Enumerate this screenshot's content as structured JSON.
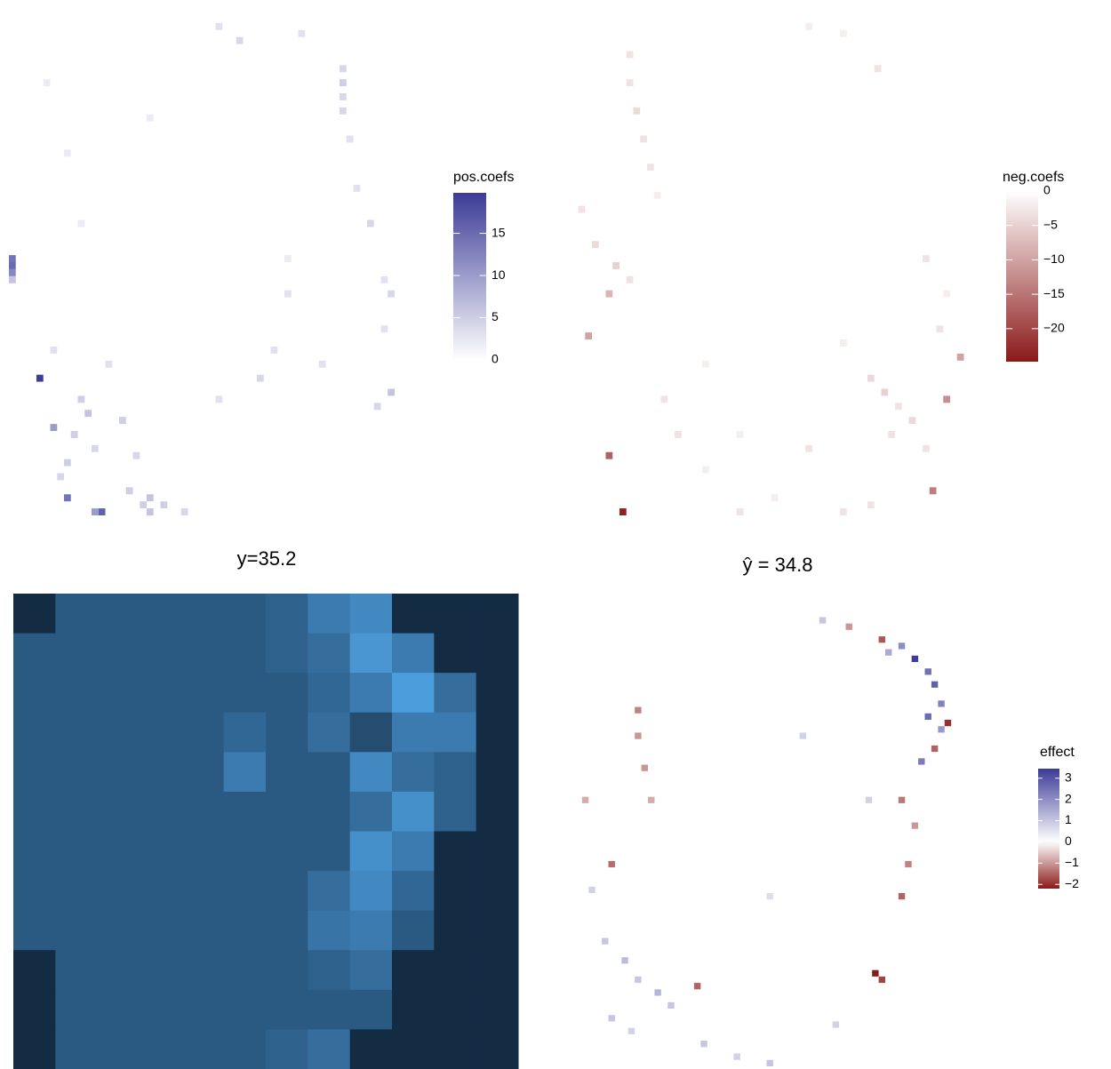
{
  "chart_data": [
    {
      "type": "heatmap",
      "legend_title": "pos.coefs",
      "high_color": "#3b3b98",
      "xlim": [
        0,
        60
      ],
      "ylim": [
        0,
        72
      ],
      "clim": [
        0,
        19.8
      ],
      "cticks": [
        0,
        5,
        10,
        15
      ],
      "x": [
        0,
        0,
        0,
        0,
        4,
        6,
        8,
        13,
        12,
        20,
        22,
        25,
        48,
        48,
        48,
        48,
        49,
        50,
        52,
        54,
        55,
        54,
        55,
        53,
        40,
        38,
        36,
        10,
        11,
        9,
        12,
        16,
        18,
        8,
        7,
        17,
        20,
        30,
        33,
        42,
        5,
        8,
        10,
        20,
        30,
        45,
        40,
        14,
        6,
        19
      ],
      "y": [
        35,
        36,
        37,
        38,
        52,
        59,
        69,
        71,
        71,
        71,
        70,
        71,
        8,
        10,
        12,
        14,
        18,
        25,
        30,
        38,
        40,
        45,
        54,
        56,
        40,
        48,
        52,
        55,
        57,
        60,
        62,
        58,
        63,
        64,
        66,
        68,
        69,
        2,
        4,
        3,
        10,
        20,
        30,
        15,
        55,
        50,
        35,
        50,
        48,
        70
      ],
      "values": [
        14,
        15,
        12,
        6,
        19.5,
        10,
        14,
        16,
        10,
        6,
        5,
        4,
        4,
        5,
        4,
        4,
        3,
        3,
        4,
        3,
        4,
        3,
        6,
        4,
        3,
        3,
        4,
        5,
        6,
        5,
        4,
        5,
        4,
        5,
        4,
        5,
        6,
        3,
        4,
        3,
        2,
        2,
        2,
        2,
        3,
        3,
        2,
        3,
        3,
        5
      ]
    },
    {
      "type": "heatmap",
      "legend_title": "neg.coefs",
      "low_color": "#8b1a1a",
      "xlim": [
        0,
        60
      ],
      "ylim": [
        0,
        72
      ],
      "clim": [
        -24.8,
        0
      ],
      "cticks": [
        0,
        {
          "value": -5,
          "label": "−5"
        },
        {
          "value": -10,
          "label": "−10"
        },
        {
          "value": -15,
          "label": "−15"
        },
        {
          "value": -20,
          "label": "−20"
        }
      ],
      "x": [
        8,
        6,
        53,
        55,
        57,
        3,
        6,
        9,
        9,
        10,
        11,
        12,
        13,
        4,
        2,
        7,
        9,
        14,
        16,
        20,
        44,
        46,
        48,
        47,
        50,
        52,
        44,
        40,
        30,
        25,
        54,
        55,
        52,
        45,
        40,
        35,
        25,
        35,
        40,
        20
      ],
      "y": [
        71,
        63,
        68,
        55,
        49,
        46,
        40,
        6,
        10,
        14,
        18,
        22,
        26,
        33,
        28,
        36,
        38,
        55,
        60,
        65,
        52,
        54,
        56,
        60,
        58,
        62,
        70,
        71,
        69,
        71,
        45,
        40,
        35,
        8,
        3,
        2,
        60,
        62,
        47,
        50
      ],
      "values": [
        -24,
        -17,
        -14,
        -12,
        -10,
        -10,
        -8,
        -3,
        -3,
        -4,
        -3,
        -3,
        -2,
        -4,
        -3,
        -5,
        -3,
        -3,
        -3,
        -2,
        -4,
        -5,
        -3,
        -3,
        -4,
        -3,
        -3,
        -3,
        -2,
        -3,
        -3,
        -2,
        -3,
        -3,
        -2,
        -2,
        -2,
        -3,
        -2,
        -2
      ]
    },
    {
      "type": "raster",
      "title": "y=35.2",
      "low_color": "#132b43",
      "high_color": "#56b1f7",
      "clim": [
        0,
        1
      ],
      "values": [
        [
          0,
          0.35,
          0.35,
          0.35,
          0.35,
          0.35,
          0.4,
          0.6,
          0.7,
          0,
          0,
          0
        ],
        [
          0.35,
          0.35,
          0.35,
          0.35,
          0.35,
          0.35,
          0.4,
          0.5,
          0.8,
          0.6,
          0,
          0
        ],
        [
          0.35,
          0.35,
          0.35,
          0.35,
          0.35,
          0.35,
          0.35,
          0.45,
          0.6,
          0.85,
          0.5,
          0
        ],
        [
          0.35,
          0.35,
          0.35,
          0.35,
          0.35,
          0.45,
          0.35,
          0.5,
          0.25,
          0.6,
          0.6,
          0
        ],
        [
          0.35,
          0.35,
          0.35,
          0.35,
          0.35,
          0.6,
          0.35,
          0.35,
          0.7,
          0.5,
          0.4,
          0
        ],
        [
          0.35,
          0.35,
          0.35,
          0.35,
          0.35,
          0.35,
          0.35,
          0.35,
          0.5,
          0.75,
          0.4,
          0
        ],
        [
          0.35,
          0.35,
          0.35,
          0.35,
          0.35,
          0.35,
          0.35,
          0.35,
          0.75,
          0.6,
          0,
          0
        ],
        [
          0.35,
          0.35,
          0.35,
          0.35,
          0.35,
          0.35,
          0.35,
          0.5,
          0.7,
          0.45,
          0,
          0
        ],
        [
          0.35,
          0.35,
          0.35,
          0.35,
          0.35,
          0.35,
          0.35,
          0.55,
          0.6,
          0.35,
          0,
          0
        ],
        [
          0,
          0.35,
          0.35,
          0.35,
          0.35,
          0.35,
          0.35,
          0.4,
          0.5,
          0,
          0,
          0
        ],
        [
          0,
          0.35,
          0.35,
          0.35,
          0.35,
          0.35,
          0.35,
          0.35,
          0.35,
          0,
          0,
          0
        ],
        [
          0,
          0.35,
          0.35,
          0.35,
          0.35,
          0.35,
          0.4,
          0.5,
          0,
          0,
          0,
          0
        ]
      ]
    },
    {
      "type": "heatmap",
      "title": "ŷ = 34.8",
      "legend_title": "effect",
      "low_color": "#8b1a1a",
      "high_color": "#3b3b98",
      "xlim": [
        0,
        60
      ],
      "ylim": [
        0,
        72
      ],
      "clim": [
        -2.2,
        3.45
      ],
      "cticks": [
        3,
        2,
        1,
        0,
        {
          "value": -1,
          "label": "−1"
        },
        {
          "value": -2,
          "label": "−2"
        }
      ],
      "x": [
        52,
        54,
        55,
        56,
        54,
        56,
        55,
        57,
        53,
        47,
        48,
        50,
        42,
        38,
        46,
        47,
        50,
        51,
        50,
        52,
        19,
        6,
        10,
        10,
        11,
        12,
        2,
        5,
        8,
        10,
        13,
        15,
        6,
        9,
        20,
        25,
        30,
        40,
        35,
        45,
        30,
        3
      ],
      "y": [
        8,
        10,
        12,
        15,
        17,
        19,
        22,
        18,
        24,
        5,
        7,
        6,
        3,
        2,
        57,
        58,
        45,
        40,
        30,
        34,
        59,
        40,
        16,
        20,
        25,
        30,
        30,
        52,
        55,
        58,
        60,
        62,
        64,
        66,
        68,
        70,
        71,
        65,
        20,
        30,
        45,
        44
      ],
      "values": [
        3.4,
        2.5,
        2.8,
        2.2,
        2.6,
        1.8,
        -1.5,
        -2,
        2.3,
        -1.6,
        1.5,
        2,
        -1,
        1,
        -2.2,
        -1.8,
        -1.5,
        -1.2,
        -1.3,
        -1,
        -1.5,
        -1.4,
        -1.2,
        -1,
        -1,
        -0.8,
        -0.8,
        1,
        1.2,
        1,
        1.3,
        1,
        1,
        0.8,
        1,
        0.8,
        1,
        0.8,
        0.8,
        0.8,
        0.6,
        0.8
      ]
    }
  ]
}
